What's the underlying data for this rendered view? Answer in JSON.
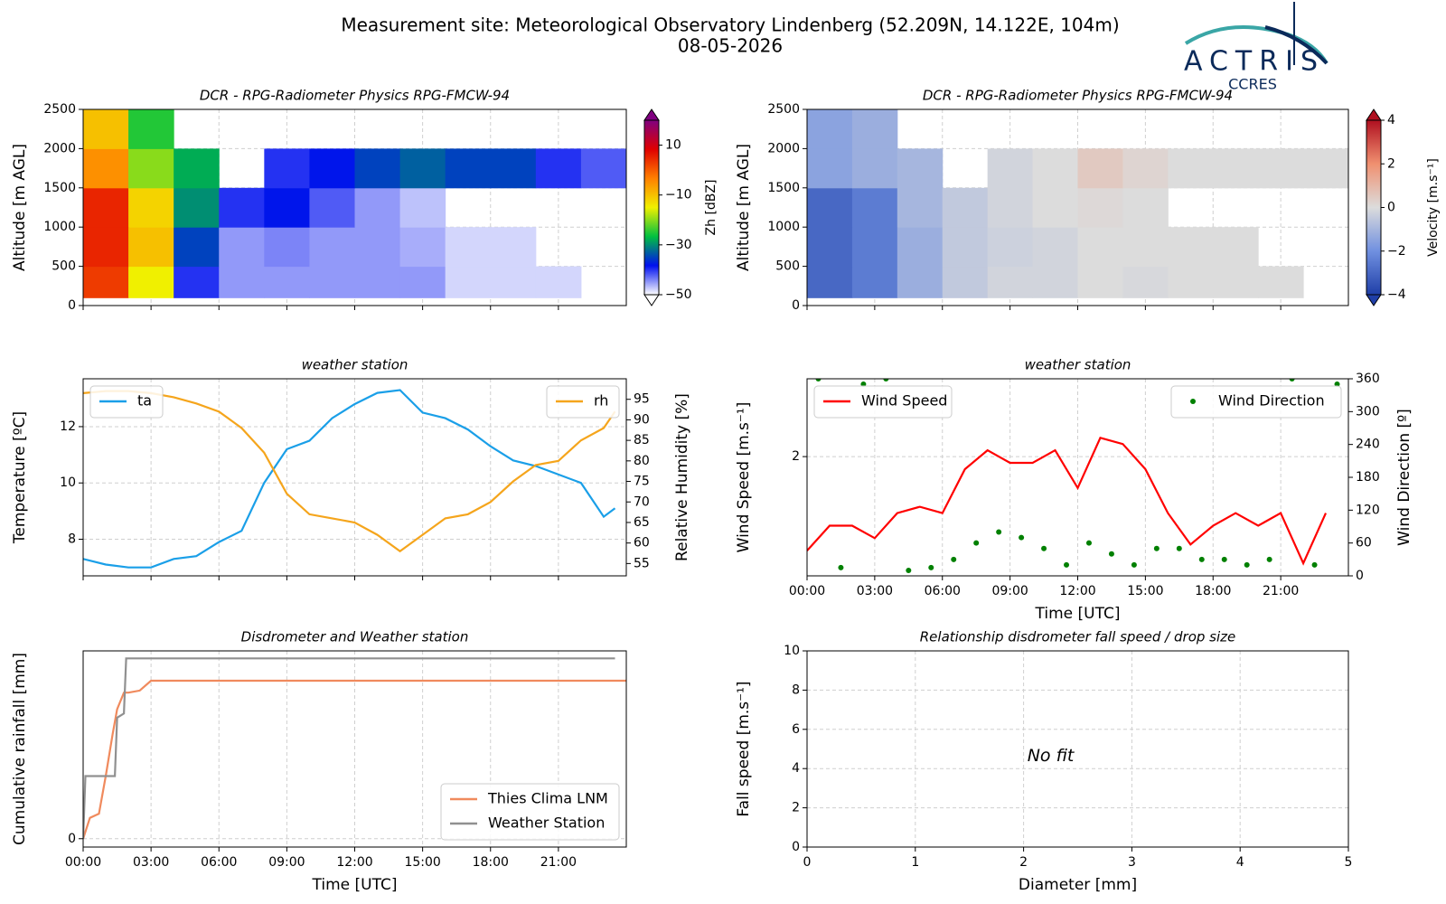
{
  "figure": {
    "title": "Measurement site: Meteorological Observatory Lindenberg (52.209N, 14.122E, 104m)",
    "date": "08-05-2026",
    "logo": "ACTRIS",
    "logo_sub": "CCRES"
  },
  "chart_data": [
    {
      "type": "heatmap",
      "title": "DCR - RPG-Radiometer Physics RPG-FMCW-94",
      "ylabel": "Altitude [m AGL]",
      "xlim": [
        0,
        24
      ],
      "xticks": [
        0,
        3,
        6,
        9,
        12,
        15,
        18,
        21
      ],
      "xtick_labels": false,
      "ylim": [
        0,
        2500
      ],
      "yticks": [
        0,
        500,
        1000,
        1500,
        2000,
        2500
      ],
      "grid": true,
      "xbins": [
        0,
        2,
        4,
        6,
        8,
        10,
        12,
        14,
        16,
        18,
        20,
        22,
        24
      ],
      "ybins": [
        100,
        500,
        1000,
        1500,
        2000,
        2500
      ],
      "values": [
        [
          3,
          -15,
          -40,
          -45,
          -45,
          -45,
          -45,
          -45,
          -48,
          -48,
          -48,
          null
        ],
        [
          5,
          -10,
          -35,
          -45,
          -44,
          -45,
          -45,
          -46,
          -48,
          -48,
          null,
          null
        ],
        [
          5,
          -12,
          -30,
          -40,
          -38,
          -42,
          -45,
          -47,
          null,
          null,
          null,
          null
        ],
        [
          -5,
          -20,
          -28,
          null,
          -40,
          -38,
          -35,
          -33,
          -35,
          -35,
          -40,
          -42
        ],
        [
          -10,
          -25,
          null,
          null,
          null,
          null,
          null,
          null,
          null,
          null,
          null,
          null
        ]
      ],
      "clim": [
        -50,
        20
      ],
      "cticks": [
        {
          "value": -50,
          "label": "−50"
        },
        {
          "value": -30,
          "label": "−30"
        },
        {
          "value": -10,
          "label": "−10"
        },
        10
      ],
      "colorbar_label": "Zh [dBZ]",
      "colorscale": [
        "#ffffff",
        "#0010f0",
        "#00c040",
        "#f0f000",
        "#ff8000",
        "#e00000",
        "#800080"
      ]
    },
    {
      "type": "heatmap",
      "title": "DCR - RPG-Radiometer Physics RPG-FMCW-94",
      "ylabel": "Altitude [m AGL]",
      "xlim": [
        0,
        24
      ],
      "xticks": [
        0,
        3,
        6,
        9,
        12,
        15,
        18,
        21
      ],
      "xtick_labels": false,
      "ylim": [
        0,
        2500
      ],
      "yticks": [
        0,
        500,
        1000,
        1500,
        2000,
        2500
      ],
      "grid": true,
      "xbins": [
        0,
        2,
        4,
        6,
        8,
        10,
        12,
        14,
        16,
        18,
        20,
        22,
        24
      ],
      "ybins": [
        100,
        500,
        1000,
        1500,
        2000,
        2500
      ],
      "values": [
        [
          -3,
          -2.5,
          -1.2,
          -0.5,
          -0.2,
          -0.2,
          0,
          -0.1,
          0,
          0,
          0,
          null
        ],
        [
          -3,
          -2.5,
          -1.2,
          -0.5,
          -0.3,
          -0.2,
          0,
          0,
          0,
          0,
          null,
          null
        ],
        [
          -3,
          -2.5,
          -1.0,
          -0.5,
          -0.2,
          0,
          0.1,
          0,
          null,
          null,
          null,
          null
        ],
        [
          -1.5,
          -1.2,
          -1.0,
          null,
          -0.2,
          0,
          0.5,
          0.2,
          0,
          0,
          0,
          0
        ],
        [
          -1.5,
          -1.2,
          null,
          null,
          null,
          null,
          null,
          null,
          null,
          null,
          null,
          null
        ]
      ],
      "clim": [
        -4,
        4
      ],
      "cticks": [
        {
          "value": -4,
          "label": "−4"
        },
        {
          "value": -2,
          "label": "−2"
        },
        0,
        2,
        4
      ],
      "colorbar_label": "Velocity [m.s⁻¹]",
      "colorscale": [
        "#1f3fa8",
        "#7090e0",
        "#dcdcdc",
        "#f09070",
        "#b01020"
      ]
    },
    {
      "type": "line",
      "title": "weather station",
      "ylabel": "Temperature [ºC]",
      "y2label": "Relative Humidity [%]",
      "xlim": [
        0,
        24
      ],
      "xticks": [
        0,
        3,
        6,
        9,
        12,
        15,
        18,
        21
      ],
      "xtick_labels": false,
      "ylim": [
        6.7,
        13.7
      ],
      "yticks": [
        8,
        10,
        12
      ],
      "y2lim": [
        52,
        100
      ],
      "y2ticks": [
        55,
        60,
        65,
        70,
        75,
        80,
        85,
        90,
        95
      ],
      "grid": true,
      "legend": "upper left",
      "legend2": "upper right",
      "series": [
        {
          "name": "ta",
          "color": "#1a9fe8",
          "x": [
            0,
            1,
            2,
            3,
            4,
            5,
            6,
            7,
            8,
            9,
            10,
            11,
            12,
            13,
            14,
            15,
            16,
            17,
            18,
            19,
            20,
            21,
            22,
            23,
            23.5
          ],
          "values": [
            7.3,
            7.1,
            7.0,
            7.0,
            7.3,
            7.4,
            7.9,
            8.3,
            10.0,
            11.2,
            11.5,
            12.3,
            12.8,
            13.2,
            13.3,
            12.5,
            12.3,
            11.9,
            11.3,
            10.8,
            10.6,
            10.3,
            10.0,
            8.8,
            9.1
          ]
        },
        {
          "name": "rh",
          "color": "#f5a51c",
          "axis": "y2",
          "x": [
            0,
            1,
            2,
            3,
            4,
            5,
            6,
            7,
            8,
            9,
            10,
            11,
            12,
            13,
            14,
            15,
            16,
            17,
            18,
            19,
            20,
            21,
            22,
            23,
            23.5
          ],
          "values": [
            96.5,
            97,
            97,
            96.5,
            95.5,
            94,
            92,
            88,
            82,
            72,
            67,
            66,
            65,
            62,
            58,
            62,
            66,
            67,
            70,
            75,
            79,
            80,
            85,
            88,
            92
          ]
        }
      ]
    },
    {
      "type": "line",
      "title": "weather station",
      "ylabel": "Wind Speed [m.s⁻¹]",
      "y2label": "Wind Direction [º]",
      "xlabel": "Time [UTC]",
      "xlim": [
        0,
        24
      ],
      "xticks": [
        {
          "value": 0,
          "label": "00:00"
        },
        {
          "value": 3,
          "label": "03:00"
        },
        {
          "value": 6,
          "label": "06:00"
        },
        {
          "value": 9,
          "label": "09:00"
        },
        {
          "value": 12,
          "label": "12:00"
        },
        {
          "value": 15,
          "label": "15:00"
        },
        {
          "value": 18,
          "label": "18:00"
        },
        {
          "value": 21,
          "label": "21:00"
        }
      ],
      "ylim": [
        1.05,
        2.62
      ],
      "yticks": [
        2
      ],
      "y2lim": [
        0,
        360
      ],
      "y2ticks": [
        0,
        60,
        120,
        180,
        240,
        300,
        360
      ],
      "grid": true,
      "legend": "upper left",
      "legend2": "upper right",
      "series": [
        {
          "name": "Wind Speed",
          "color": "#ff0000",
          "x": [
            0,
            1,
            2,
            3,
            4,
            5,
            6,
            7,
            8,
            9,
            10,
            11,
            12,
            13,
            14,
            15,
            16,
            17,
            18,
            19,
            20,
            21,
            22,
            23
          ],
          "values": [
            1.25,
            1.45,
            1.45,
            1.35,
            1.55,
            1.6,
            1.55,
            1.9,
            2.05,
            1.95,
            1.95,
            2.05,
            1.75,
            2.15,
            2.1,
            1.9,
            1.55,
            1.3,
            1.45,
            1.55,
            1.45,
            1.55,
            1.15,
            1.55
          ]
        },
        {
          "name": "Wind Direction",
          "color": "#008000",
          "axis": "y2",
          "marker": "dot",
          "x": [
            0.5,
            1.5,
            2.5,
            3.5,
            4.5,
            5.5,
            6.5,
            7.5,
            8.5,
            9.5,
            10.5,
            11.5,
            12.5,
            13.5,
            14.5,
            15.5,
            16.5,
            17.5,
            18.5,
            19.5,
            20.5,
            21.5,
            22.5,
            23.5
          ],
          "values": [
            360,
            15,
            350,
            360,
            10,
            15,
            30,
            60,
            80,
            70,
            50,
            20,
            60,
            40,
            20,
            50,
            50,
            30,
            30,
            20,
            30,
            360,
            20,
            350
          ]
        }
      ]
    },
    {
      "type": "line",
      "title": "Disdrometer and Weather station",
      "ylabel": "Cumulative rainfall [mm]",
      "xlabel": "Time [UTC]",
      "xlim": [
        0,
        24
      ],
      "xticks": [
        {
          "value": 0,
          "label": "00:00"
        },
        {
          "value": 3,
          "label": "03:00"
        },
        {
          "value": 6,
          "label": "06:00"
        },
        {
          "value": 9,
          "label": "09:00"
        },
        {
          "value": 12,
          "label": "12:00"
        },
        {
          "value": 15,
          "label": "15:00"
        },
        {
          "value": 18,
          "label": "18:00"
        },
        {
          "value": 21,
          "label": "21:00"
        }
      ],
      "ylim": [
        -0.04,
        0.9
      ],
      "yticks": [
        0
      ],
      "grid": true,
      "legend": "lower right",
      "series": [
        {
          "name": "Thies Clima LNM",
          "color": "#f08a5d",
          "x": [
            0,
            0.3,
            0.7,
            1.0,
            1.3,
            1.5,
            1.8,
            2.0,
            2.5,
            3.0,
            24
          ],
          "values": [
            0,
            0.1,
            0.12,
            0.3,
            0.5,
            0.62,
            0.7,
            0.7,
            0.71,
            0.757,
            0.757
          ]
        },
        {
          "name": "Weather Station",
          "color": "#909090",
          "x": [
            0,
            0.1,
            1.4,
            1.5,
            1.8,
            1.9,
            23.5
          ],
          "values": [
            0,
            0.3,
            0.3,
            0.58,
            0.6,
            0.864,
            0.864
          ]
        }
      ]
    },
    {
      "type": "scatter",
      "title": "Relationship disdrometer fall speed / drop size",
      "ylabel": "Fall speed [m.s⁻¹]",
      "xlabel": "Diameter [mm]",
      "xlim": [
        0,
        5
      ],
      "xticks": [
        0,
        1,
        2,
        3,
        4,
        5
      ],
      "ylim": [
        0,
        10
      ],
      "yticks": [
        0,
        2,
        4,
        6,
        8,
        10
      ],
      "grid": true,
      "annotation": "No fit"
    }
  ]
}
